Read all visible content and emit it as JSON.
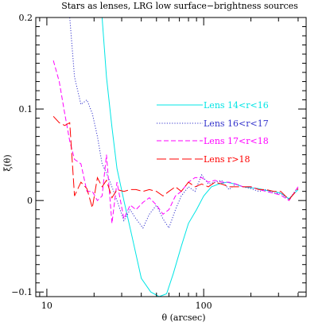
{
  "chart_data": {
    "type": "line",
    "title": "Stars as lenses, LRG low surface−brightness sources",
    "xlabel": "θ (arcsec)",
    "ylabel": "ξ(θ)",
    "xscale": "log",
    "xlim": [
      8.5,
      450
    ],
    "ylim": [
      -0.105,
      0.2
    ],
    "xticks": [
      {
        "value": 10,
        "label": "10"
      },
      {
        "value": 100,
        "label": "100"
      }
    ],
    "yticks": [
      {
        "value": -0.1,
        "label": "−0.1"
      },
      {
        "value": 0,
        "label": "0"
      },
      {
        "value": 0.1,
        "label": "0.1"
      },
      {
        "value": 0.2,
        "label": "0.2"
      }
    ],
    "legend_position": "center-right",
    "series": [
      {
        "name": "Lens 14<r<16",
        "color": "#00e5e5",
        "dash": "solid",
        "x": [
          22.5,
          24.0,
          26.0,
          28.0,
          31.0,
          35.0,
          40.0,
          46.0,
          52.0,
          58.0,
          64.0,
          72.0,
          80.0,
          90.0,
          100.0,
          112.0,
          125.0,
          140.0,
          158.0,
          178.0,
          200.0,
          225.0,
          250.0,
          280.0,
          310.0,
          350.0,
          400.0
        ],
        "y": [
          0.2,
          0.135,
          0.08,
          0.035,
          0.0,
          -0.04,
          -0.085,
          -0.1,
          -0.105,
          -0.102,
          -0.08,
          -0.05,
          -0.025,
          -0.01,
          0.005,
          0.015,
          0.018,
          0.02,
          0.018,
          0.015,
          0.014,
          0.013,
          0.011,
          0.01,
          0.008,
          0.002,
          0.012
        ]
      },
      {
        "name": "Lens 16<r<17",
        "color": "#3333cc",
        "dash": "dotted",
        "x": [
          14.0,
          15.0,
          16.5,
          18.0,
          19.5,
          21.0,
          22.5,
          24.0,
          26.0,
          28.0,
          31.0,
          34.0,
          37.0,
          41.0,
          45.0,
          50.0,
          55.0,
          60.0,
          66.0,
          72.0,
          80.0,
          88.0,
          97.0,
          107.0,
          118.0,
          130.0,
          145.0,
          160.0,
          178.0,
          200.0,
          225.0,
          250.0,
          280.0,
          310.0,
          350.0,
          400.0
        ],
        "y": [
          0.2,
          0.135,
          0.105,
          0.11,
          0.095,
          0.07,
          0.04,
          0.03,
          0.015,
          0.0,
          -0.022,
          -0.01,
          -0.02,
          -0.03,
          -0.015,
          -0.005,
          -0.02,
          -0.03,
          -0.01,
          0.005,
          0.015,
          0.01,
          0.028,
          0.018,
          0.02,
          0.022,
          0.012,
          0.018,
          0.015,
          0.013,
          0.01,
          0.012,
          0.008,
          0.008,
          0.001,
          0.015
        ]
      },
      {
        "name": "Lens 17<r<18",
        "color": "#ff00ff",
        "dash": "dashed",
        "x": [
          11.0,
          12.0,
          13.0,
          14.0,
          15.0,
          16.5,
          18.0,
          19.5,
          21.0,
          22.5,
          24.0,
          26.0,
          28.0,
          31.0,
          34.0,
          37.0,
          41.0,
          45.0,
          50.0,
          55.0,
          60.0,
          66.0,
          72.0,
          80.0,
          88.0,
          97.0,
          107.0,
          118.0,
          130.0,
          145.0,
          160.0,
          178.0,
          200.0,
          225.0,
          250.0,
          280.0,
          310.0,
          350.0,
          400.0
        ],
        "y": [
          0.153,
          0.13,
          0.095,
          0.065,
          0.045,
          0.04,
          0.01,
          0.01,
          0.0,
          0.005,
          0.05,
          -0.025,
          0.02,
          -0.02,
          -0.005,
          -0.01,
          -0.002,
          0.003,
          -0.005,
          -0.015,
          -0.01,
          0.005,
          0.01,
          0.02,
          0.025,
          0.025,
          0.02,
          0.022,
          0.02,
          0.02,
          0.018,
          0.015,
          0.015,
          0.012,
          0.01,
          0.008,
          0.006,
          0.0,
          0.015
        ]
      },
      {
        "name": "Lens r>18",
        "color": "#ff0000",
        "dash": "longdash",
        "x": [
          11.0,
          12.0,
          13.0,
          14.0,
          15.0,
          16.5,
          18.0,
          19.5,
          21.0,
          22.5,
          24.0,
          26.0,
          28.0,
          31.0,
          34.0,
          37.0,
          41.0,
          45.0,
          50.0,
          55.0,
          60.0,
          66.0,
          72.0,
          80.0,
          88.0,
          97.0,
          107.0,
          118.0,
          130.0,
          145.0,
          160.0,
          178.0,
          200.0,
          225.0,
          250.0,
          280.0,
          310.0,
          350.0,
          400.0
        ],
        "y": [
          0.092,
          0.085,
          0.082,
          0.085,
          0.005,
          0.02,
          0.013,
          -0.008,
          0.025,
          0.015,
          0.022,
          0.003,
          0.012,
          0.01,
          0.012,
          0.012,
          0.01,
          0.012,
          0.01,
          0.005,
          0.01,
          0.015,
          0.01,
          0.02,
          0.015,
          0.018,
          0.015,
          0.02,
          0.018,
          0.015,
          0.015,
          0.015,
          0.015,
          0.012,
          0.012,
          0.01,
          0.01,
          0.001,
          0.013
        ]
      }
    ]
  }
}
